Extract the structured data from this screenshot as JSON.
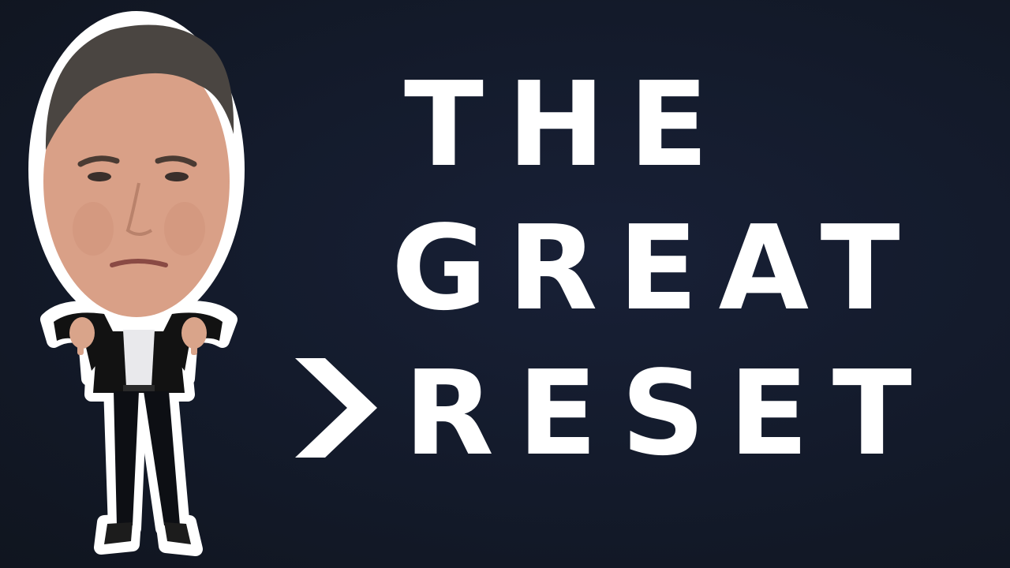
{
  "title": {
    "line1": "THE",
    "line2": "GREAT",
    "line3": "RESET"
  },
  "icons": {
    "chevron": "chevron-right-icon"
  },
  "colors": {
    "background": "#141a2b",
    "title_text": "#ffffff",
    "sticker_outline": "#ffffff",
    "suit": "#111111",
    "shirt": "#e9e9ec"
  }
}
